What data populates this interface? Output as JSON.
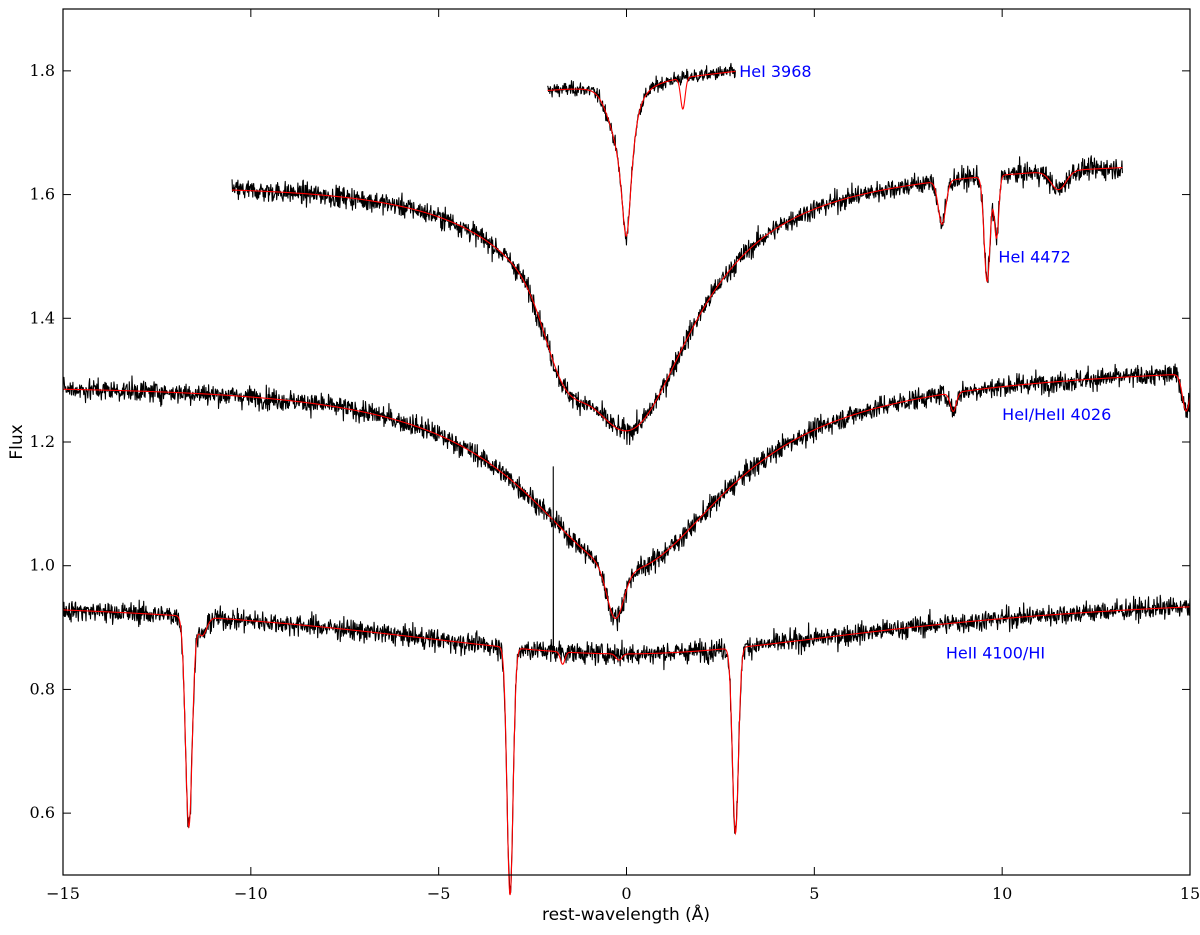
{
  "chart_data": {
    "type": "line",
    "xlabel": "rest-wavelength (Å)",
    "ylabel": "Flux",
    "xlim": [
      -15,
      15
    ],
    "ylim": [
      0.5,
      1.9
    ],
    "x_ticks": [
      -15,
      -10,
      -5,
      0,
      5,
      10,
      15
    ],
    "x_tick_labels": [
      "−15",
      "−10",
      "−5",
      "0",
      "5",
      "10",
      "15"
    ],
    "y_ticks": [
      0.6,
      0.8,
      1.0,
      1.2,
      1.4,
      1.6,
      1.8
    ],
    "y_tick_labels": [
      "0.6",
      "0.8",
      "1.0",
      "1.2",
      "1.4",
      "1.6",
      "1.8"
    ],
    "grid": false,
    "colors": {
      "observed": "#000000",
      "model": "#ff0000",
      "annotation": "#0000ff"
    },
    "panels": [
      {
        "label": "HeI 3968",
        "label_pos": [
          3.0,
          1.8
        ],
        "xrange": [
          -2.1,
          2.9
        ],
        "continuum": [
          -2.1,
          1.77,
          2.9,
          1.8
        ],
        "observed_noise": 0.008,
        "features": [
          {
            "center": 0.0,
            "depth": 0.23,
            "width": 0.18,
            "profile": "lorentz"
          },
          {
            "center": -0.3,
            "depth": 0.04,
            "width": 0.25,
            "profile": "gauss"
          }
        ],
        "model_extra_features": [
          {
            "center": 1.5,
            "depth": 0.05,
            "width": 0.06,
            "profile": "gauss"
          }
        ]
      },
      {
        "label": "HeI 4472",
        "label_pos": [
          9.9,
          1.5
        ],
        "xrange": [
          -10.5,
          13.2
        ],
        "continuum": [
          -10.5,
          1.625,
          13.2,
          1.655
        ],
        "observed_noise": 0.012,
        "features": [
          {
            "center": 0.0,
            "depth": 0.42,
            "width": 2.2,
            "profile": "lorentz"
          },
          {
            "center": -1.7,
            "depth": 0.08,
            "width": 0.5,
            "profile": "gauss"
          },
          {
            "center": 8.4,
            "depth": 0.07,
            "width": 0.1,
            "profile": "gauss"
          },
          {
            "center": 9.6,
            "depth": 0.17,
            "width": 0.08,
            "profile": "gauss"
          },
          {
            "center": 9.85,
            "depth": 0.1,
            "width": 0.06,
            "profile": "gauss"
          },
          {
            "center": 11.5,
            "depth": 0.03,
            "width": 0.2,
            "profile": "gauss"
          }
        ],
        "model_extra_features": []
      },
      {
        "label": "HeI/HeII 4026",
        "label_pos": [
          10.0,
          1.245
        ],
        "xrange": [
          -15,
          15
        ],
        "continuum": [
          -15,
          1.3,
          15,
          1.325
        ],
        "observed_noise": 0.012,
        "features": [
          {
            "center": 0.0,
            "depth": 0.32,
            "width": 3.3,
            "profile": "lorentz"
          },
          {
            "center": -0.3,
            "depth": 0.08,
            "width": 0.22,
            "profile": "gauss"
          },
          {
            "center": 8.7,
            "depth": 0.03,
            "width": 0.08,
            "profile": "gauss"
          },
          {
            "center": 14.9,
            "depth": 0.06,
            "width": 0.1,
            "profile": "gauss"
          }
        ],
        "model_extra_features": []
      },
      {
        "label": "HeII 4100/HI",
        "label_pos": [
          8.5,
          0.86
        ],
        "xrange": [
          -15,
          15
        ],
        "continuum": [
          -15,
          0.955,
          15,
          0.96
        ],
        "observed_noise": 0.012,
        "broad_features": [
          {
            "center": 0.0,
            "depth": 0.1,
            "width": 9.0,
            "profile": "lorentz"
          }
        ],
        "features": [
          {
            "center": -11.65,
            "depth": 0.34,
            "width": 0.09,
            "profile": "gauss"
          },
          {
            "center": -11.3,
            "depth": 0.03,
            "width": 0.12,
            "profile": "gauss"
          },
          {
            "center": -3.1,
            "depth": 0.4,
            "width": 0.08,
            "profile": "gauss"
          },
          {
            "center": 2.9,
            "depth": 0.3,
            "width": 0.08,
            "profile": "gauss"
          }
        ],
        "model_extra_features": [
          {
            "center": -1.7,
            "depth": 0.02,
            "width": 0.06,
            "profile": "gauss"
          },
          {
            "center": -0.2,
            "depth": 0.01,
            "width": 0.08,
            "profile": "gauss"
          }
        ],
        "cosmic_ray": {
          "x": -1.95,
          "y_low": 0.88,
          "y_high": 1.16
        }
      }
    ]
  }
}
